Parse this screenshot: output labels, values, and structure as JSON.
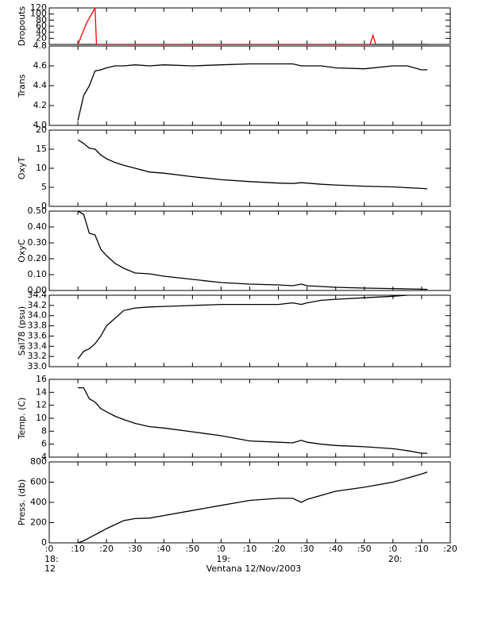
{
  "x_axis": {
    "xlim": [
      0,
      140
    ],
    "xticks": [
      {
        "value": 0,
        "label": ":0"
      },
      {
        "value": 10,
        "label": ":10"
      },
      {
        "value": 20,
        "label": ":20"
      },
      {
        "value": 30,
        "label": ":30"
      },
      {
        "value": 40,
        "label": ":40"
      },
      {
        "value": 50,
        "label": ":50"
      },
      {
        "value": 60,
        "label": ":0"
      },
      {
        "value": 70,
        "label": ":10"
      },
      {
        "value": 80,
        "label": ":20"
      },
      {
        "value": 90,
        "label": ":30"
      },
      {
        "value": 100,
        "label": ":40"
      },
      {
        "value": 110,
        "label": ":50"
      },
      {
        "value": 120,
        "label": ":0"
      },
      {
        "value": 130,
        "label": ":10"
      },
      {
        "value": 140,
        "label": ":20"
      }
    ],
    "hour_labels": [
      {
        "value": 0,
        "label": "18:"
      },
      {
        "value": 60,
        "label": "19:"
      },
      {
        "value": 120,
        "label": "20:"
      }
    ],
    "day_label": {
      "value": 0,
      "label": "12"
    },
    "title": "Ventana 12/Nov/2003"
  },
  "chart_data": [
    {
      "type": "line",
      "ylabel": "Dropouts",
      "ylim": [
        0,
        120
      ],
      "yticks": [
        20,
        40,
        60,
        80,
        100,
        120
      ],
      "series": [
        {
          "color": "#000000",
          "x": [
            10,
            132
          ],
          "values": [
            0,
            0
          ]
        },
        {
          "color": "#ff0000",
          "x": [
            10,
            13,
            16,
            16.5,
            112,
            113,
            114
          ],
          "values": [
            0,
            70,
            120,
            0,
            0,
            30,
            0
          ]
        }
      ]
    },
    {
      "type": "line",
      "ylabel": "Trans",
      "ylim": [
        4.0,
        4.8
      ],
      "yticks": [
        {
          "value": 4.0,
          "label": "4.0"
        },
        {
          "value": 4.2,
          "label": "4.2"
        },
        {
          "value": 4.4,
          "label": "4.4"
        },
        {
          "value": 4.6,
          "label": "4.6"
        },
        {
          "value": 4.8,
          "label": "4.8"
        }
      ],
      "x": [
        10,
        12,
        14,
        16,
        18,
        20,
        23,
        26,
        30,
        35,
        40,
        50,
        60,
        70,
        80,
        85,
        88,
        90,
        95,
        100,
        110,
        120,
        125,
        130,
        132
      ],
      "series": [
        {
          "color": "#000000",
          "values": [
            4.05,
            4.3,
            4.4,
            4.55,
            4.56,
            4.58,
            4.6,
            4.6,
            4.61,
            4.6,
            4.61,
            4.6,
            4.61,
            4.62,
            4.62,
            4.62,
            4.6,
            4.6,
            4.6,
            4.58,
            4.57,
            4.6,
            4.6,
            4.56,
            4.56
          ]
        }
      ]
    },
    {
      "type": "line",
      "ylabel": "OxyT",
      "ylim": [
        0,
        20
      ],
      "yticks": [
        0,
        5,
        10,
        15,
        20
      ],
      "x": [
        10,
        12,
        14,
        16,
        18,
        20,
        23,
        26,
        30,
        35,
        40,
        50,
        60,
        70,
        80,
        85,
        88,
        90,
        95,
        100,
        110,
        120,
        125,
        130,
        132
      ],
      "series": [
        {
          "color": "#000000",
          "values": [
            17.5,
            16.5,
            15.3,
            15,
            13.5,
            12.5,
            11.5,
            10.8,
            10,
            9,
            8.7,
            7.8,
            7,
            6.5,
            6.1,
            6,
            6.2,
            6.1,
            5.8,
            5.6,
            5.3,
            5.1,
            4.9,
            4.7,
            4.6
          ]
        }
      ]
    },
    {
      "type": "line",
      "ylabel": "OxyC",
      "ylim": [
        0,
        0.5
      ],
      "yticks": [
        {
          "value": 0,
          "label": "0.00"
        },
        {
          "value": 0.1,
          "label": "0.10"
        },
        {
          "value": 0.2,
          "label": "0.20"
        },
        {
          "value": 0.3,
          "label": "0.30"
        },
        {
          "value": 0.4,
          "label": "0.40"
        },
        {
          "value": 0.5,
          "label": "0.50"
        }
      ],
      "x": [
        10,
        12,
        14,
        16,
        18,
        20,
        23,
        26,
        30,
        35,
        40,
        50,
        60,
        70,
        80,
        85,
        88,
        90,
        95,
        100,
        110,
        120,
        125,
        130,
        132
      ],
      "series": [
        {
          "color": "#000000",
          "values": [
            0.5,
            0.48,
            0.36,
            0.35,
            0.26,
            0.22,
            0.17,
            0.14,
            0.11,
            0.105,
            0.09,
            0.07,
            0.05,
            0.04,
            0.035,
            0.03,
            0.04,
            0.03,
            0.025,
            0.02,
            0.015,
            0.012,
            0.01,
            0.008,
            0.007
          ]
        }
      ]
    },
    {
      "type": "line",
      "ylabel": "Sal78 (psu)",
      "ylim": [
        33.0,
        34.4
      ],
      "yticks": [
        {
          "value": 33.0,
          "label": "33.0"
        },
        33.2,
        33.4,
        33.6,
        33.8,
        {
          "value": 34.0,
          "label": "34.0"
        },
        34.2,
        34.4
      ],
      "x": [
        10,
        12,
        14,
        16,
        18,
        20,
        23,
        26,
        30,
        35,
        40,
        50,
        60,
        70,
        80,
        85,
        88,
        90,
        95,
        100,
        110,
        120,
        125,
        130,
        132
      ],
      "series": [
        {
          "color": "#000000",
          "values": [
            33.15,
            33.3,
            33.35,
            33.45,
            33.6,
            33.8,
            33.95,
            34.1,
            34.15,
            34.17,
            34.18,
            34.2,
            34.22,
            34.22,
            34.22,
            34.25,
            34.22,
            34.25,
            34.3,
            34.32,
            34.35,
            34.38,
            34.4,
            34.43,
            34.43
          ]
        }
      ]
    },
    {
      "type": "line",
      "ylabel": "Temp. (C)",
      "ylim": [
        4,
        16
      ],
      "yticks": [
        4,
        6,
        8,
        10,
        12,
        14,
        16
      ],
      "x": [
        10,
        12,
        14,
        16,
        18,
        20,
        23,
        26,
        30,
        35,
        40,
        50,
        60,
        70,
        80,
        85,
        88,
        90,
        95,
        100,
        110,
        120,
        125,
        130,
        132
      ],
      "series": [
        {
          "color": "#000000",
          "values": [
            14.7,
            14.7,
            13,
            12.5,
            11.5,
            11,
            10.3,
            9.8,
            9.2,
            8.7,
            8.5,
            7.9,
            7.3,
            6.5,
            6.3,
            6.2,
            6.6,
            6.3,
            6,
            5.8,
            5.6,
            5.3,
            5,
            4.6,
            4.6
          ]
        }
      ]
    },
    {
      "type": "line",
      "ylabel": "Press. (db)",
      "ylim": [
        0,
        800
      ],
      "yticks": [
        0,
        200,
        400,
        600,
        800
      ],
      "x": [
        10,
        12,
        14,
        16,
        18,
        20,
        23,
        26,
        30,
        35,
        40,
        50,
        60,
        70,
        80,
        85,
        88,
        90,
        95,
        100,
        110,
        120,
        125,
        130,
        132
      ],
      "series": [
        {
          "color": "#000000",
          "values": [
            0,
            20,
            50,
            80,
            110,
            140,
            180,
            220,
            240,
            245,
            270,
            320,
            370,
            420,
            440,
            440,
            400,
            430,
            470,
            510,
            550,
            600,
            640,
            680,
            700
          ]
        }
      ]
    }
  ]
}
